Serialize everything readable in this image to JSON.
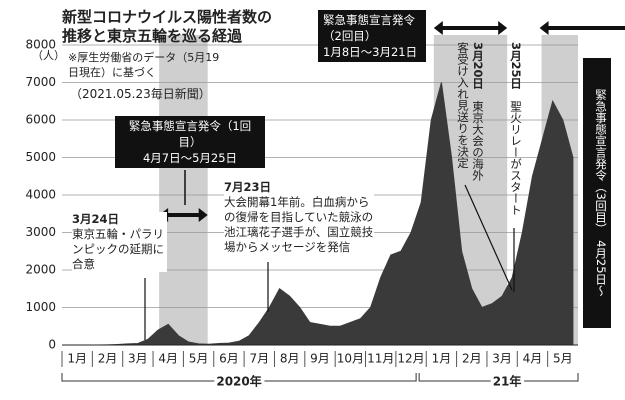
{
  "chart_data": {
    "type": "area",
    "title_lines": [
      "新型コロナウイルス陽性者数の",
      "推移と東京五輪を巡る経過"
    ],
    "note": "※厚生労働省のデータ（5月19日現在）に基づく",
    "source": "（2021.05.23毎日新聞）",
    "y_unit": "（人）",
    "categories": [
      null,
      "1月",
      null,
      null,
      "2月",
      null,
      null,
      "3月",
      null,
      null,
      "4月",
      null,
      null,
      "5月",
      null,
      null,
      "6月",
      null,
      null,
      "7月",
      null,
      null,
      "8月",
      null,
      null,
      "9月",
      null,
      null,
      "10月",
      null,
      null,
      "11月",
      null,
      null,
      "12月",
      null,
      null,
      "1月",
      null,
      null,
      "2月",
      null,
      null,
      "3月",
      null,
      null,
      "4月",
      null,
      null,
      "5月",
      null
    ],
    "values": [
      0,
      0,
      0,
      0,
      5,
      15,
      30,
      40,
      150,
      400,
      550,
      250,
      80,
      30,
      20,
      40,
      50,
      100,
      250,
      600,
      1000,
      1500,
      1300,
      1000,
      600,
      550,
      500,
      500,
      600,
      700,
      1000,
      1800,
      2400,
      2500,
      3000,
      3800,
      6000,
      7000,
      5000,
      2500,
      1500,
      1000,
      1100,
      1300,
      1800,
      3000,
      4500,
      5500,
      6500,
      6000,
      5000
    ],
    "color": "#3a3a3a",
    "ylim": [
      0,
      8000
    ],
    "yticks": [
      0,
      1000,
      2000,
      3000,
      4000,
      5000,
      6000,
      7000,
      8000
    ],
    "grid": true,
    "years": [
      "2020年",
      "21年"
    ],
    "emergency": [
      {
        "title": "緊急事態宣言発令（1回目）",
        "period": "4月7日～5月25日"
      },
      {
        "title": "緊急事態宣言発令（2回目）",
        "period": "1月8日～3月21日"
      },
      {
        "title": "緊急事態宣言発令（3回目）",
        "period": "4月25日～"
      }
    ],
    "events": [
      {
        "date": "3月24日",
        "text": "東京五輪・パラリンピックの延期に合意"
      },
      {
        "date": "7月23日",
        "text": "大会開幕1年前。白血病からの復帰を目指していた競泳の池江璃花子選手が、国立競技場からメッセージを発信"
      },
      {
        "date": "3月20日",
        "text": "東京大会の海外客受け入れ見送りを決定"
      },
      {
        "date": "3月25日",
        "text": "聖火リレーがスタート"
      }
    ]
  }
}
